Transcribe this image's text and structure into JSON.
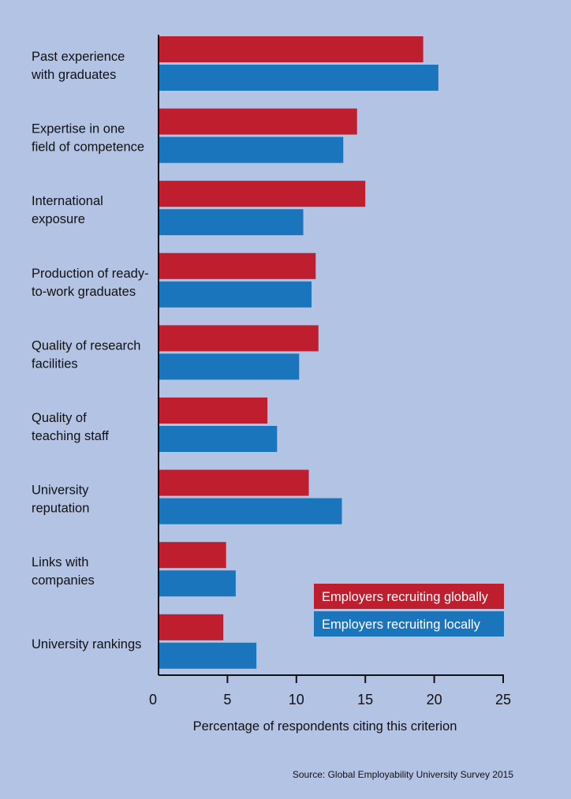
{
  "chart_data": {
    "type": "bar",
    "orientation": "horizontal",
    "categories": [
      [
        "Past experience",
        "with graduates"
      ],
      [
        "Expertise in one",
        "field of competence"
      ],
      [
        "International",
        "exposure"
      ],
      [
        "Production of ready-",
        "to-work graduates"
      ],
      [
        "Quality of research",
        "facilities"
      ],
      [
        "Quality of",
        "teaching staff"
      ],
      [
        "University",
        "reputation"
      ],
      [
        "Links with",
        "companies"
      ],
      [
        "University rankings"
      ]
    ],
    "series": [
      {
        "name": "Employers recruiting globally",
        "color": "#be1e2d",
        "values": [
          19.2,
          14.4,
          15.0,
          11.4,
          11.6,
          7.9,
          10.9,
          4.9,
          4.7
        ]
      },
      {
        "name": "Employers recruiting locally",
        "color": "#1b75bc",
        "values": [
          20.3,
          13.4,
          10.5,
          11.1,
          10.2,
          8.6,
          13.3,
          5.6,
          7.1
        ]
      }
    ],
    "xlabel": "Percentage of respondents citing this criterion",
    "xlim": [
      0,
      25
    ],
    "xticks": [
      0,
      5,
      10,
      15,
      20,
      25
    ],
    "legend": "bottom-right",
    "grid": false,
    "source": "Source: Global Employability University Survey 2015"
  }
}
